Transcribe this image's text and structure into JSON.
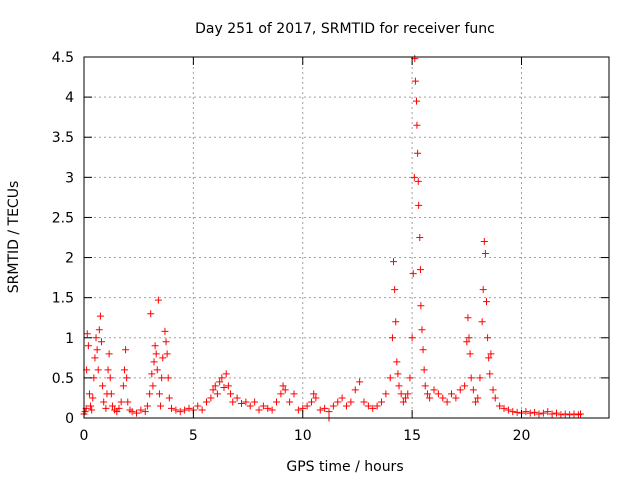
{
  "chart_data": {
    "type": "scatter",
    "title": "Day 251 of 2017, SRMTID for receiver func",
    "xlabel": "GPS time / hours",
    "ylabel": "SRMTID / TECUs",
    "xlim": [
      0,
      24
    ],
    "ylim": [
      0,
      4.5
    ],
    "grid": true,
    "x_ticks": [
      0,
      5,
      10,
      15,
      20
    ],
    "x_tick_labels": [
      "0",
      "5",
      "10",
      "15",
      "20"
    ],
    "y_ticks": [
      0,
      0.5,
      1,
      1.5,
      2,
      2.5,
      3,
      3.5,
      4,
      4.5
    ],
    "y_tick_labels": [
      "0",
      "0.5",
      "1",
      "1.5",
      "2",
      "2.5",
      "3",
      "3.5",
      "4",
      "4.5"
    ],
    "marker": "+",
    "marker_color": "#ff0000",
    "series": [
      {
        "name": "SRMTID",
        "points": [
          [
            0.0,
            0.05
          ],
          [
            0.05,
            0.08
          ],
          [
            0.1,
            0.12
          ],
          [
            0.12,
            0.6
          ],
          [
            0.15,
            1.05
          ],
          [
            0.2,
            0.9
          ],
          [
            0.25,
            0.3
          ],
          [
            0.3,
            0.15
          ],
          [
            0.35,
            0.1
          ],
          [
            0.4,
            0.25
          ],
          [
            0.45,
            0.5
          ],
          [
            0.5,
            0.75
          ],
          [
            0.55,
            1.0
          ],
          [
            0.6,
            0.85
          ],
          [
            0.65,
            0.6
          ],
          [
            0.7,
            1.1
          ],
          [
            0.75,
            1.27
          ],
          [
            0.8,
            0.95
          ],
          [
            0.85,
            0.4
          ],
          [
            0.9,
            0.2
          ],
          [
            1.0,
            0.12
          ],
          [
            1.05,
            0.3
          ],
          [
            1.1,
            0.6
          ],
          [
            1.15,
            0.8
          ],
          [
            1.2,
            0.5
          ],
          [
            1.25,
            0.3
          ],
          [
            1.3,
            0.15
          ],
          [
            1.4,
            0.1
          ],
          [
            1.5,
            0.08
          ],
          [
            1.6,
            0.12
          ],
          [
            1.7,
            0.2
          ],
          [
            1.8,
            0.4
          ],
          [
            1.85,
            0.6
          ],
          [
            1.9,
            0.85
          ],
          [
            1.95,
            0.5
          ],
          [
            2.0,
            0.2
          ],
          [
            2.1,
            0.1
          ],
          [
            2.2,
            0.08
          ],
          [
            2.4,
            0.06
          ],
          [
            2.6,
            0.1
          ],
          [
            2.8,
            0.08
          ],
          [
            2.9,
            0.15
          ],
          [
            3.0,
            0.3
          ],
          [
            3.05,
            1.3
          ],
          [
            3.1,
            0.55
          ],
          [
            3.15,
            0.4
          ],
          [
            3.2,
            0.7
          ],
          [
            3.25,
            0.9
          ],
          [
            3.3,
            0.8
          ],
          [
            3.35,
            0.6
          ],
          [
            3.4,
            1.47
          ],
          [
            3.45,
            0.3
          ],
          [
            3.5,
            0.15
          ],
          [
            3.55,
            0.5
          ],
          [
            3.6,
            0.75
          ],
          [
            3.7,
            1.08
          ],
          [
            3.75,
            0.95
          ],
          [
            3.8,
            0.8
          ],
          [
            3.85,
            0.5
          ],
          [
            3.9,
            0.25
          ],
          [
            4.0,
            0.12
          ],
          [
            4.2,
            0.1
          ],
          [
            4.4,
            0.08
          ],
          [
            4.6,
            0.1
          ],
          [
            4.8,
            0.12
          ],
          [
            5.0,
            0.1
          ],
          [
            5.2,
            0.15
          ],
          [
            5.4,
            0.1
          ],
          [
            5.6,
            0.2
          ],
          [
            5.8,
            0.25
          ],
          [
            5.9,
            0.35
          ],
          [
            6.0,
            0.4
          ],
          [
            6.1,
            0.3
          ],
          [
            6.2,
            0.45
          ],
          [
            6.3,
            0.5
          ],
          [
            6.4,
            0.38
          ],
          [
            6.5,
            0.55
          ],
          [
            6.6,
            0.4
          ],
          [
            6.7,
            0.3
          ],
          [
            6.8,
            0.2
          ],
          [
            7.0,
            0.25
          ],
          [
            7.2,
            0.18
          ],
          [
            7.4,
            0.2
          ],
          [
            7.6,
            0.15
          ],
          [
            7.8,
            0.2
          ],
          [
            8.0,
            0.1
          ],
          [
            8.2,
            0.15
          ],
          [
            8.4,
            0.12
          ],
          [
            8.6,
            0.1
          ],
          [
            8.8,
            0.2
          ],
          [
            9.0,
            0.3
          ],
          [
            9.1,
            0.4
          ],
          [
            9.2,
            0.35
          ],
          [
            9.4,
            0.2
          ],
          [
            9.6,
            0.3
          ],
          [
            9.8,
            0.1
          ],
          [
            10.0,
            0.12
          ],
          [
            10.2,
            0.15
          ],
          [
            10.4,
            0.2
          ],
          [
            10.5,
            0.3
          ],
          [
            10.6,
            0.25
          ],
          [
            10.8,
            0.1
          ],
          [
            11.0,
            0.12
          ],
          [
            11.2,
            0.08
          ],
          [
            11.4,
            0.15
          ],
          [
            11.6,
            0.2
          ],
          [
            11.8,
            0.25
          ],
          [
            12.0,
            0.15
          ],
          [
            12.2,
            0.2
          ],
          [
            12.4,
            0.35
          ],
          [
            12.6,
            0.45
          ],
          [
            12.8,
            0.2
          ],
          [
            13.0,
            0.15
          ],
          [
            13.2,
            0.12
          ],
          [
            13.4,
            0.15
          ],
          [
            13.6,
            0.2
          ],
          [
            13.8,
            0.3
          ],
          [
            14.0,
            0.5
          ],
          [
            14.1,
            1.0
          ],
          [
            14.15,
            1.95
          ],
          [
            14.2,
            1.6
          ],
          [
            14.25,
            1.2
          ],
          [
            14.3,
            0.7
          ],
          [
            14.35,
            0.55
          ],
          [
            14.4,
            0.4
          ],
          [
            14.5,
            0.3
          ],
          [
            14.6,
            0.2
          ],
          [
            14.7,
            0.25
          ],
          [
            14.8,
            0.3
          ],
          [
            14.9,
            0.5
          ],
          [
            15.0,
            1.0
          ],
          [
            15.05,
            1.8
          ],
          [
            15.1,
            3.0
          ],
          [
            15.12,
            4.48
          ],
          [
            15.15,
            4.2
          ],
          [
            15.2,
            3.95
          ],
          [
            15.22,
            3.65
          ],
          [
            15.25,
            3.3
          ],
          [
            15.28,
            2.95
          ],
          [
            15.3,
            2.65
          ],
          [
            15.35,
            2.25
          ],
          [
            15.38,
            1.85
          ],
          [
            15.4,
            1.4
          ],
          [
            15.45,
            1.1
          ],
          [
            15.5,
            0.85
          ],
          [
            15.55,
            0.6
          ],
          [
            15.6,
            0.4
          ],
          [
            15.7,
            0.3
          ],
          [
            15.8,
            0.25
          ],
          [
            16.0,
            0.35
          ],
          [
            16.2,
            0.3
          ],
          [
            16.4,
            0.25
          ],
          [
            16.6,
            0.2
          ],
          [
            16.8,
            0.3
          ],
          [
            17.0,
            0.25
          ],
          [
            17.2,
            0.35
          ],
          [
            17.4,
            0.4
          ],
          [
            17.5,
            0.95
          ],
          [
            17.55,
            1.25
          ],
          [
            17.6,
            1.0
          ],
          [
            17.65,
            0.8
          ],
          [
            17.7,
            0.5
          ],
          [
            17.8,
            0.35
          ],
          [
            17.9,
            0.2
          ],
          [
            18.0,
            0.25
          ],
          [
            18.1,
            0.5
          ],
          [
            18.2,
            1.2
          ],
          [
            18.25,
            1.6
          ],
          [
            18.3,
            2.2
          ],
          [
            18.35,
            2.05
          ],
          [
            18.4,
            1.45
          ],
          [
            18.45,
            1.0
          ],
          [
            18.5,
            0.75
          ],
          [
            18.55,
            0.55
          ],
          [
            18.6,
            0.8
          ],
          [
            18.7,
            0.35
          ],
          [
            18.8,
            0.25
          ],
          [
            19.0,
            0.15
          ],
          [
            19.2,
            0.12
          ],
          [
            19.4,
            0.1
          ],
          [
            19.6,
            0.08
          ],
          [
            19.8,
            0.07
          ],
          [
            20.0,
            0.06
          ],
          [
            20.2,
            0.08
          ],
          [
            20.4,
            0.06
          ],
          [
            20.6,
            0.07
          ],
          [
            20.8,
            0.05
          ],
          [
            21.0,
            0.06
          ],
          [
            21.2,
            0.08
          ],
          [
            21.4,
            0.05
          ],
          [
            21.6,
            0.06
          ],
          [
            21.8,
            0.04
          ],
          [
            22.0,
            0.05
          ],
          [
            22.2,
            0.04
          ],
          [
            22.4,
            0.05
          ],
          [
            22.6,
            0.04
          ],
          [
            22.7,
            0.05
          ],
          [
            11.2,
            0.0
          ]
        ]
      }
    ]
  }
}
